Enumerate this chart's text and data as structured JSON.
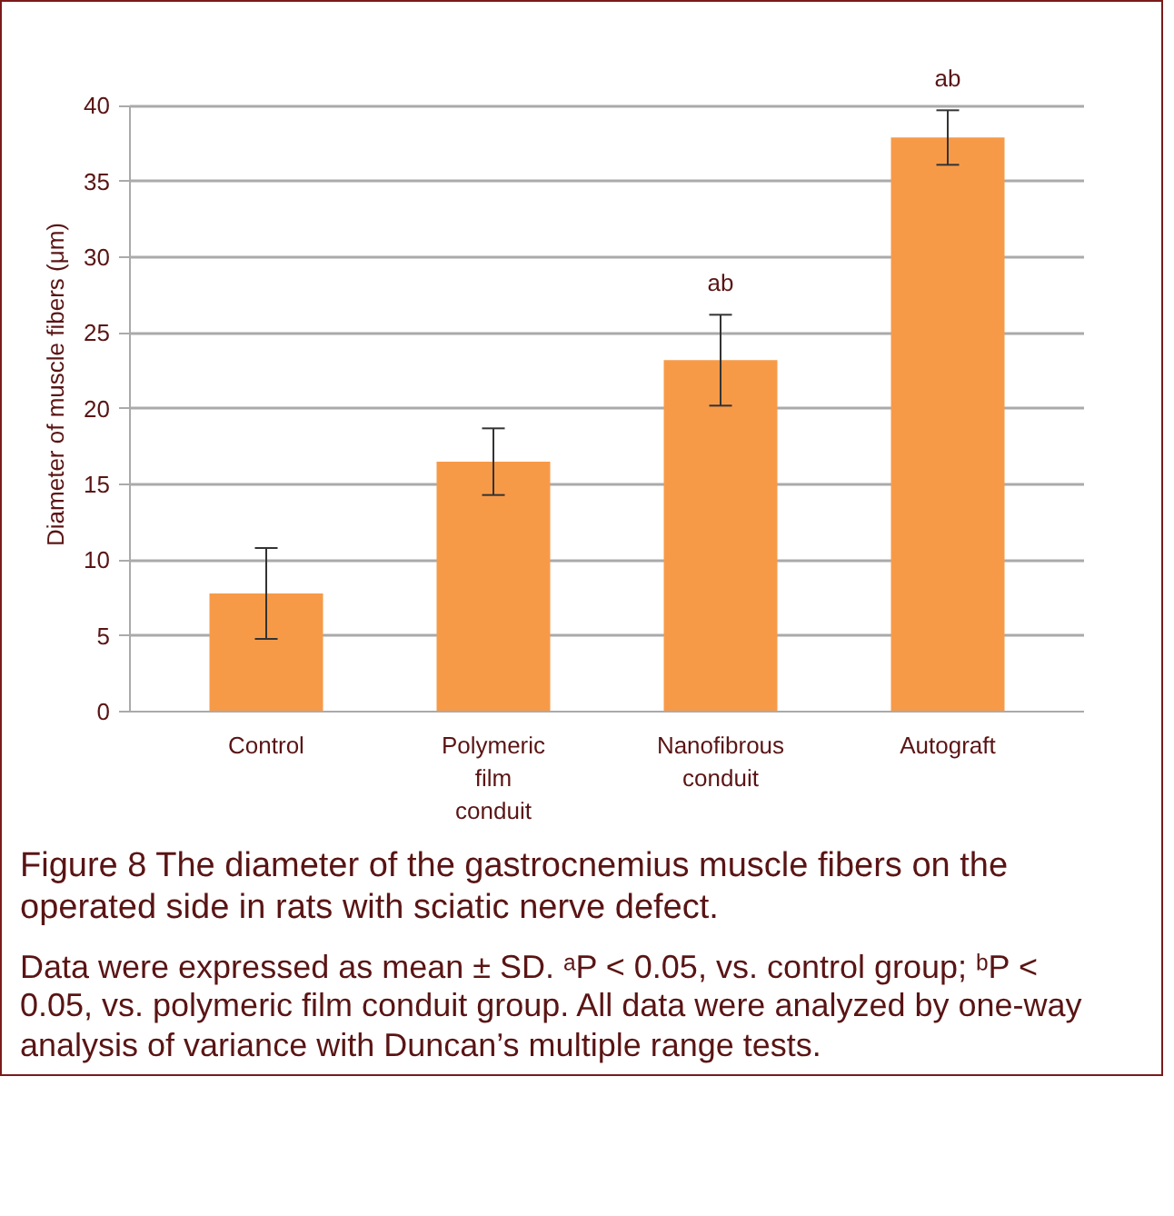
{
  "chart_data": {
    "type": "bar",
    "ylabel": "Diameter of muscle fibers (μm)",
    "categories": [
      "Control",
      "Polymeric film conduit",
      "Nanofibrous conduit",
      "Autograft"
    ],
    "values": [
      7.8,
      16.5,
      23.2,
      37.9
    ],
    "errors": [
      3.0,
      2.2,
      3.0,
      1.8
    ],
    "color": "#f79a48",
    "ylim": [
      0,
      40
    ],
    "yticks": [
      0,
      5,
      10,
      15,
      20,
      25,
      30,
      35,
      40
    ],
    "grid": "y",
    "annotations": [
      {
        "text": "ab",
        "x": "Nanofibrous conduit",
        "y": 26.2
      },
      {
        "text": "ab",
        "x": "Autograft",
        "y": 39.7
      },
      "Figure 8    The diameter of the gastrocnemius muscle fibers on the operated side in rats with sciatic nerve defect.",
      "Data were expressed as mean ± SD. ᵃP < 0.05, vs. control group; ᵇP < 0.05, vs. polymeric film conduit group. All data were analyzed by one-way analysis of variance with Duncan’s multiple range tests."
    ]
  }
}
